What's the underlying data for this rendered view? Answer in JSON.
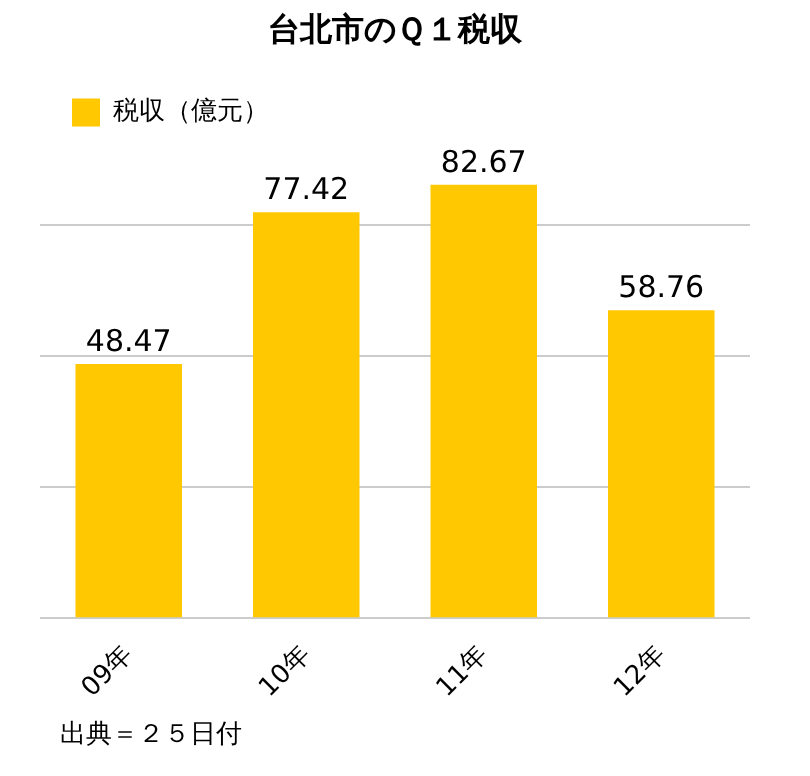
{
  "chart_data": {
    "type": "bar",
    "title": "台北市のＱ１税収",
    "categories": [
      "09年",
      "10年",
      "11年",
      "12年"
    ],
    "series": [
      {
        "name": "税収（億元）",
        "color": "#ffc800",
        "values": [
          48.47,
          77.42,
          82.67,
          58.76
        ]
      }
    ],
    "yticks": [
      {
        "value": 0,
        "label": null
      },
      {
        "value": 25,
        "label": null
      },
      {
        "value": 50,
        "label": null
      },
      {
        "value": 75,
        "label": null
      }
    ],
    "tick_labels": "x",
    "grid": "y",
    "legend": "top left",
    "data_labels": true,
    "annotations": [
      "出典＝２５日付"
    ]
  }
}
